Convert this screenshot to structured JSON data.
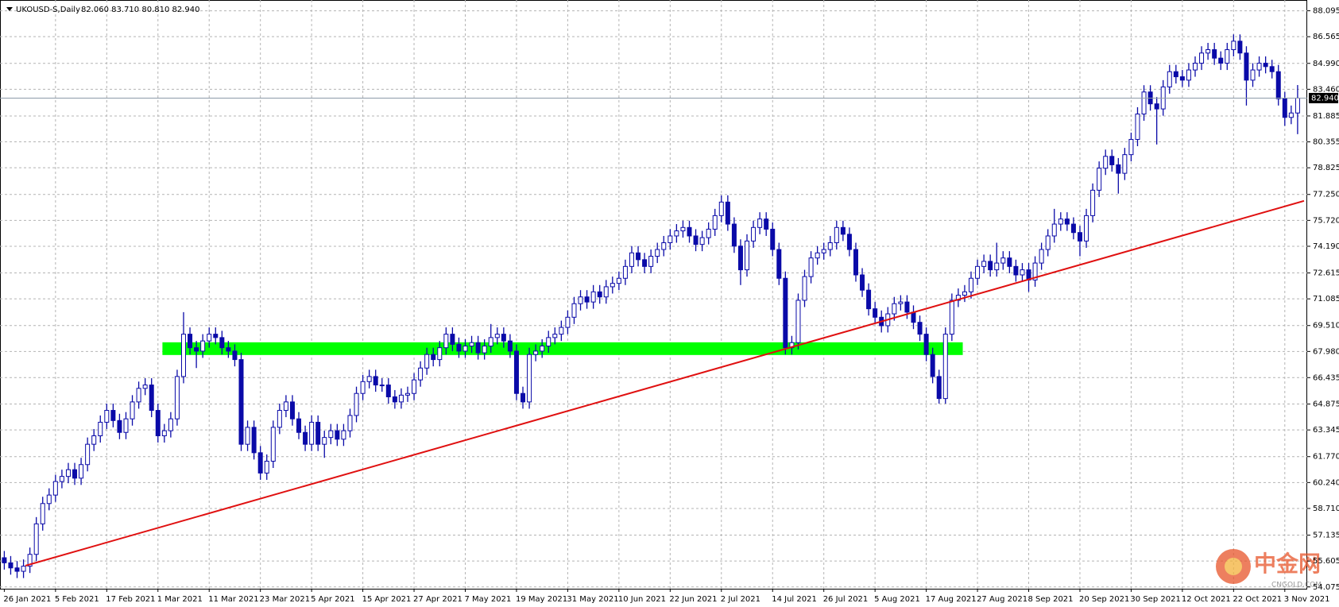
{
  "chart_data": {
    "type": "candlestick",
    "title": "UKOUSD-S,Daily",
    "header": "82.060 83.710 80.810 82.940",
    "color": "#0a0aa8",
    "grid": true,
    "ylim": [
      53.97,
      88.45
    ],
    "yticks": [
      88.095,
      86.565,
      {
        "value": 84.99,
        "label": "84.990"
      },
      {
        "value": 83.46,
        "label": "83.460"
      },
      81.885,
      80.355,
      78.825,
      {
        "value": 77.25,
        "label": "77.250"
      },
      {
        "value": 75.72,
        "label": "75.720"
      },
      {
        "value": 74.19,
        "label": "74.190"
      },
      72.615,
      71.085,
      {
        "value": 69.51,
        "label": "69.510"
      },
      {
        "value": 67.98,
        "label": "67.980"
      },
      66.435,
      64.875,
      63.345,
      {
        "value": 61.77,
        "label": "61.770"
      },
      {
        "value": 60.24,
        "label": "60.240"
      },
      {
        "value": 58.71,
        "label": "58.710"
      },
      57.135,
      55.605,
      54.075
    ],
    "current_price": {
      "value": 82.94,
      "label": "82.940",
      "color": "#8c9aa8"
    },
    "trendline": {
      "color": "#e01010",
      "from": [
        3.3,
        55.33
      ],
      "to": [
        203,
        76.87
      ]
    },
    "zone": {
      "color": "#00ff00",
      "x": [
        24.7,
        149.7
      ],
      "y": [
        67.77,
        68.52
      ]
    },
    "watermark": {
      "text": "中金网",
      "sub": "CNGOLD.COM"
    },
    "categories": [
      "26 Jan 2021",
      null,
      null,
      null,
      null,
      null,
      null,
      null,
      "5 Feb 2021",
      null,
      null,
      null,
      null,
      null,
      null,
      null,
      "17 Feb 2021",
      null,
      null,
      null,
      null,
      null,
      null,
      null,
      "1 Mar 2021",
      null,
      null,
      null,
      null,
      null,
      null,
      null,
      "11 Mar 2021",
      null,
      null,
      null,
      null,
      null,
      null,
      null,
      "23 Mar 2021",
      null,
      null,
      null,
      null,
      null,
      null,
      null,
      "5 Apr 2021",
      null,
      null,
      null,
      null,
      null,
      null,
      null,
      "15 Apr 2021",
      null,
      null,
      null,
      null,
      null,
      null,
      null,
      "27 Apr 2021",
      null,
      null,
      null,
      null,
      null,
      null,
      null,
      "7 May 2021",
      null,
      null,
      null,
      null,
      null,
      null,
      null,
      "19 May 2021",
      null,
      null,
      null,
      null,
      null,
      null,
      null,
      "31 May 2021",
      null,
      null,
      null,
      null,
      null,
      null,
      null,
      "10 Jun 2021",
      null,
      null,
      null,
      null,
      null,
      null,
      null,
      "22 Jun 2021",
      null,
      null,
      null,
      null,
      null,
      null,
      null,
      "2 Jul 2021",
      null,
      null,
      null,
      null,
      null,
      null,
      null,
      "14 Jul 2021",
      null,
      null,
      null,
      null,
      null,
      null,
      null,
      "26 Jul 2021",
      null,
      null,
      null,
      null,
      null,
      null,
      null,
      "5 Aug 2021",
      null,
      null,
      null,
      null,
      null,
      null,
      null,
      "17 Aug 2021",
      null,
      null,
      null,
      null,
      null,
      null,
      null,
      "27 Aug 2021",
      null,
      null,
      null,
      null,
      null,
      null,
      null,
      "8 Sep 2021",
      null,
      null,
      null,
      null,
      null,
      null,
      null,
      "20 Sep 2021",
      null,
      null,
      null,
      null,
      null,
      null,
      null,
      "30 Sep 2021",
      null,
      null,
      null,
      null,
      null,
      null,
      null,
      "12 Oct 2021",
      null,
      null,
      null,
      null,
      null,
      null,
      null,
      "22 Oct 2021",
      null,
      null,
      null,
      null,
      null,
      null,
      null,
      "3 Nov 2021",
      null,
      null
    ],
    "open": [
      55.8,
      55.5,
      55.2,
      55.0,
      55.3,
      56.0,
      57.8,
      59.0,
      59.5,
      60.3,
      60.6,
      61.0,
      60.5,
      61.3,
      62.5,
      63.0,
      63.8,
      64.5,
      63.9,
      63.2,
      64.0,
      65.0,
      65.8,
      66.0,
      64.5,
      63.0,
      63.3,
      64.0,
      66.5,
      69.0,
      68.2,
      68.0,
      68.6,
      69.0,
      68.8,
      68.2,
      68.0,
      67.5,
      62.5,
      63.5,
      62.0,
      60.8,
      61.5,
      63.5,
      64.5,
      65.0,
      64.0,
      63.2,
      62.5,
      63.8,
      62.5,
      62.9,
      63.3,
      62.8,
      63.3,
      64.2,
      65.5,
      66.2,
      66.5,
      66.0,
      66.0,
      65.3,
      65.0,
      65.4,
      65.5,
      66.3,
      67.0,
      67.8,
      67.5,
      68.2,
      69.0,
      68.4,
      68.0,
      68.3,
      68.5,
      67.9,
      68.3,
      68.8,
      69.0,
      68.6,
      68.0,
      65.5,
      65.0,
      67.8,
      68.0,
      68.3,
      68.8,
      69.0,
      69.4,
      70.0,
      70.8,
      71.2,
      70.9,
      71.5,
      71.2,
      71.8,
      72.0,
      72.3,
      73.0,
      73.8,
      73.4,
      73.0,
      73.6,
      74.0,
      74.4,
      74.8,
      75.1,
      75.3,
      74.8,
      74.3,
      74.7,
      75.2,
      76.0,
      76.8,
      75.5,
      74.2,
      72.8,
      74.5,
      75.3,
      75.8,
      75.2,
      74.0,
      72.3,
      68.2,
      68.5,
      71.0,
      72.4,
      73.5,
      73.8,
      74.0,
      74.4,
      75.3,
      74.9,
      74.0,
      72.5,
      71.6,
      70.5,
      70.0,
      69.5,
      70.2,
      70.8,
      70.9,
      70.3,
      69.7,
      69.0,
      67.8,
      66.5,
      65.2,
      69.0,
      71.0,
      71.3,
      71.5,
      72.3,
      73.0,
      73.3,
      72.8,
      73.2,
      73.5,
      73.0,
      72.5,
      72.8,
      72.2,
      73.2,
      74.0,
      74.8,
      75.5,
      75.8,
      75.5,
      75.0,
      74.5,
      76.0,
      77.5,
      78.8,
      79.5,
      79.0,
      78.5,
      79.6,
      80.5,
      82.0,
      83.3,
      82.6,
      82.3,
      83.6,
      84.5,
      84.2,
      84.0,
      84.6,
      85.0,
      85.6,
      85.8,
      85.3,
      85.0,
      85.8,
      86.3,
      85.6,
      84.0,
      84.6,
      85.0,
      84.8,
      84.5,
      82.9,
      81.8,
      82.06
    ],
    "high": [
      56.2,
      55.9,
      55.6,
      55.7,
      56.4,
      58.2,
      59.4,
      59.9,
      60.7,
      61.0,
      61.4,
      61.4,
      61.7,
      62.9,
      63.4,
      64.2,
      64.9,
      64.9,
      64.3,
      64.4,
      65.4,
      66.2,
      66.4,
      66.4,
      64.9,
      63.7,
      64.4,
      66.9,
      70.3,
      69.4,
      68.6,
      69.0,
      69.4,
      69.4,
      69.2,
      68.6,
      68.4,
      67.9,
      63.9,
      63.9,
      62.4,
      61.9,
      63.9,
      64.9,
      65.4,
      65.4,
      64.4,
      63.6,
      64.2,
      64.2,
      63.3,
      63.7,
      63.7,
      63.7,
      64.6,
      65.9,
      66.6,
      66.9,
      66.9,
      66.4,
      66.4,
      65.7,
      65.8,
      65.9,
      66.7,
      67.4,
      68.2,
      68.2,
      68.6,
      69.4,
      69.4,
      68.8,
      68.7,
      68.9,
      68.9,
      68.7,
      69.6,
      69.4,
      69.4,
      69.0,
      68.4,
      65.9,
      68.2,
      68.4,
      68.7,
      69.2,
      69.4,
      69.8,
      70.4,
      71.2,
      71.6,
      71.6,
      71.9,
      71.9,
      72.2,
      72.4,
      72.7,
      73.4,
      74.2,
      74.2,
      73.8,
      74.0,
      74.4,
      74.8,
      75.2,
      75.5,
      75.7,
      75.7,
      75.2,
      75.1,
      75.6,
      76.4,
      77.2,
      77.2,
      75.9,
      74.6,
      74.9,
      75.7,
      76.2,
      76.2,
      75.6,
      74.4,
      72.7,
      68.9,
      71.4,
      72.8,
      73.9,
      74.2,
      74.4,
      74.8,
      75.7,
      75.7,
      75.3,
      74.4,
      72.9,
      72.0,
      70.9,
      70.4,
      70.6,
      71.2,
      71.3,
      71.3,
      70.7,
      70.1,
      69.4,
      68.2,
      66.9,
      69.4,
      71.4,
      71.7,
      71.9,
      72.7,
      73.4,
      73.7,
      73.7,
      74.4,
      73.9,
      73.9,
      73.4,
      73.2,
      73.2,
      73.6,
      74.4,
      75.2,
      76.4,
      76.2,
      76.2,
      75.9,
      75.4,
      76.4,
      77.9,
      79.2,
      79.9,
      79.9,
      79.4,
      80.0,
      80.9,
      82.4,
      83.7,
      83.7,
      83.0,
      84.0,
      84.9,
      84.9,
      84.6,
      85.0,
      85.4,
      86.0,
      86.2,
      86.2,
      85.7,
      86.2,
      86.7,
      86.7,
      86.0,
      85.0,
      85.4,
      85.4,
      85.2,
      84.9,
      83.3,
      82.5,
      83.71
    ],
    "low": [
      55.1,
      54.8,
      54.6,
      54.6,
      54.9,
      55.6,
      57.4,
      58.6,
      59.1,
      59.9,
      60.2,
      60.1,
      60.1,
      60.9,
      62.1,
      62.6,
      63.4,
      63.5,
      62.8,
      62.8,
      63.6,
      64.6,
      65.4,
      64.1,
      62.6,
      62.6,
      62.9,
      63.6,
      66.1,
      67.8,
      67.0,
      67.6,
      68.2,
      68.4,
      67.8,
      67.6,
      67.1,
      62.1,
      62.1,
      61.6,
      60.4,
      60.4,
      61.1,
      63.1,
      64.1,
      63.6,
      62.8,
      62.1,
      62.1,
      62.1,
      61.7,
      62.5,
      62.4,
      62.4,
      62.9,
      63.8,
      65.1,
      65.8,
      65.6,
      65.6,
      64.9,
      64.6,
      64.6,
      65.0,
      65.1,
      65.9,
      66.6,
      67.1,
      67.1,
      67.8,
      68.0,
      67.6,
      67.6,
      67.9,
      67.5,
      67.5,
      67.9,
      68.4,
      68.2,
      67.6,
      65.1,
      64.6,
      64.6,
      67.4,
      67.6,
      67.9,
      68.4,
      68.6,
      69.0,
      69.6,
      70.4,
      70.5,
      70.5,
      70.8,
      70.8,
      71.4,
      71.6,
      71.9,
      72.6,
      73.0,
      72.6,
      72.6,
      73.2,
      73.6,
      74.0,
      74.4,
      74.7,
      74.4,
      73.9,
      73.9,
      74.3,
      74.8,
      75.6,
      75.1,
      73.8,
      71.9,
      72.4,
      74.1,
      74.9,
      74.8,
      73.6,
      71.9,
      67.8,
      67.8,
      68.1,
      70.6,
      72.0,
      73.1,
      73.4,
      73.6,
      74.0,
      74.5,
      73.6,
      72.1,
      71.2,
      70.1,
      69.6,
      69.1,
      69.1,
      69.8,
      70.4,
      69.9,
      69.3,
      68.6,
      67.4,
      66.1,
      64.9,
      64.9,
      68.6,
      70.6,
      70.9,
      71.1,
      71.9,
      72.6,
      72.4,
      72.4,
      72.8,
      72.6,
      72.1,
      72.1,
      71.5,
      71.8,
      72.8,
      73.6,
      74.4,
      75.1,
      75.1,
      74.6,
      73.6,
      74.1,
      75.6,
      77.1,
      78.4,
      78.6,
      77.3,
      78.1,
      79.2,
      80.1,
      81.6,
      82.2,
      80.2,
      81.9,
      83.2,
      83.8,
      83.6,
      83.6,
      84.2,
      84.6,
      85.2,
      84.9,
      84.6,
      84.6,
      85.4,
      85.2,
      82.5,
      83.6,
      84.2,
      84.4,
      84.1,
      82.5,
      81.3,
      81.4,
      80.81
    ],
    "close": [
      55.5,
      55.2,
      55.0,
      55.3,
      56.0,
      57.8,
      59.0,
      59.5,
      60.3,
      60.6,
      61.0,
      60.5,
      61.3,
      62.5,
      63.0,
      63.8,
      64.5,
      63.9,
      63.2,
      64.0,
      65.0,
      65.8,
      66.0,
      64.5,
      63.0,
      63.3,
      64.0,
      66.5,
      69.0,
      68.2,
      68.0,
      68.6,
      69.0,
      68.8,
      68.2,
      68.0,
      67.5,
      62.5,
      63.5,
      62.0,
      60.8,
      61.5,
      63.5,
      64.5,
      65.0,
      64.0,
      63.2,
      62.5,
      63.8,
      62.5,
      62.9,
      63.3,
      62.8,
      63.3,
      64.2,
      65.5,
      66.2,
      66.5,
      66.0,
      66.0,
      65.3,
      65.0,
      65.4,
      65.5,
      66.3,
      67.0,
      67.8,
      67.5,
      68.2,
      69.0,
      68.4,
      68.0,
      68.3,
      68.5,
      67.9,
      68.3,
      68.8,
      69.0,
      68.6,
      68.0,
      65.5,
      65.0,
      67.8,
      68.0,
      68.3,
      68.8,
      69.0,
      69.4,
      70.0,
      70.8,
      71.2,
      70.9,
      71.5,
      71.2,
      71.8,
      72.0,
      72.3,
      73.0,
      73.8,
      73.4,
      73.0,
      73.6,
      74.0,
      74.4,
      74.8,
      75.1,
      75.3,
      74.8,
      74.3,
      74.7,
      75.2,
      76.0,
      76.8,
      75.5,
      74.2,
      72.8,
      74.5,
      75.3,
      75.8,
      75.2,
      74.0,
      72.3,
      68.2,
      68.5,
      71.0,
      72.4,
      73.5,
      73.8,
      74.0,
      74.4,
      75.3,
      74.9,
      74.0,
      72.5,
      71.6,
      70.5,
      70.0,
      69.5,
      70.2,
      70.8,
      70.9,
      70.3,
      69.7,
      69.0,
      67.8,
      66.5,
      65.2,
      69.0,
      71.0,
      71.3,
      71.5,
      72.3,
      73.0,
      73.3,
      72.8,
      73.2,
      73.5,
      73.0,
      72.5,
      72.8,
      72.2,
      73.2,
      74.0,
      74.8,
      75.5,
      75.8,
      75.5,
      75.0,
      74.5,
      76.0,
      77.5,
      78.8,
      79.5,
      79.0,
      78.5,
      79.6,
      80.5,
      82.0,
      83.3,
      82.6,
      82.3,
      83.6,
      84.5,
      84.2,
      84.0,
      84.6,
      85.0,
      85.6,
      85.8,
      85.3,
      85.0,
      85.8,
      86.3,
      85.6,
      84.0,
      84.6,
      85.0,
      84.8,
      84.5,
      82.9,
      81.8,
      82.06,
      82.94
    ]
  }
}
